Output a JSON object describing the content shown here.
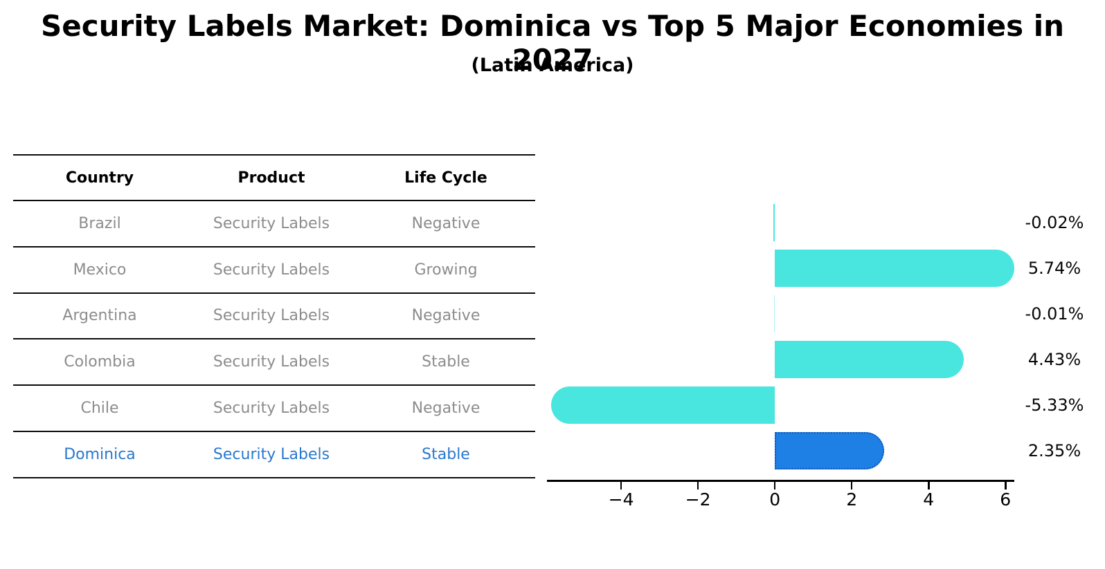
{
  "title": "Security Labels Market: Dominica vs Top 5 Major Economies in 2027",
  "subtitle": "(Latin America)",
  "table": {
    "headers": [
      "Country",
      "Product",
      "Life Cycle"
    ],
    "rows": [
      {
        "country": "Brazil",
        "product": "Security Labels",
        "life_cycle": "Negative",
        "highlight": false
      },
      {
        "country": "Mexico",
        "product": "Security Labels",
        "life_cycle": "Growing",
        "highlight": false
      },
      {
        "country": "Argentina",
        "product": "Security Labels",
        "life_cycle": "Negative",
        "highlight": false
      },
      {
        "country": "Colombia",
        "product": "Security Labels",
        "life_cycle": "Stable",
        "highlight": false
      },
      {
        "country": "Chile",
        "product": "Security Labels",
        "life_cycle": "Negative",
        "highlight": false
      },
      {
        "country": "Dominica",
        "product": "Security Labels",
        "life_cycle": "Stable",
        "highlight": true
      }
    ]
  },
  "chart_data": {
    "type": "bar",
    "orientation": "horizontal",
    "categories": [
      "Brazil",
      "Mexico",
      "Argentina",
      "Colombia",
      "Chile",
      "Dominica"
    ],
    "values": [
      -0.02,
      5.74,
      -0.01,
      4.43,
      -5.33,
      2.35
    ],
    "value_labels": [
      "-0.02%",
      "5.74%",
      "-0.01%",
      "4.43%",
      "-5.33%",
      "2.35%"
    ],
    "x_ticks": [
      -4,
      -2,
      0,
      2,
      4,
      6
    ],
    "x_tick_labels": [
      "−4",
      "−2",
      "0",
      "2",
      "4",
      "6"
    ],
    "xlim": [
      -5.93,
      6.23
    ],
    "highlight_index": 5,
    "grid": false,
    "legend_position": "none",
    "title": "Security Labels Market: Dominica vs Top 5 Major Economies in 2027",
    "xlabel": "",
    "ylabel": ""
  },
  "colors": {
    "bar": "#49E5DF",
    "highlight_bar": "#1E7FE5",
    "highlight_border": "#0e57b8",
    "highlight_text": "#2878cf",
    "body_text": "#8c8c8c",
    "axis": "#000000"
  }
}
